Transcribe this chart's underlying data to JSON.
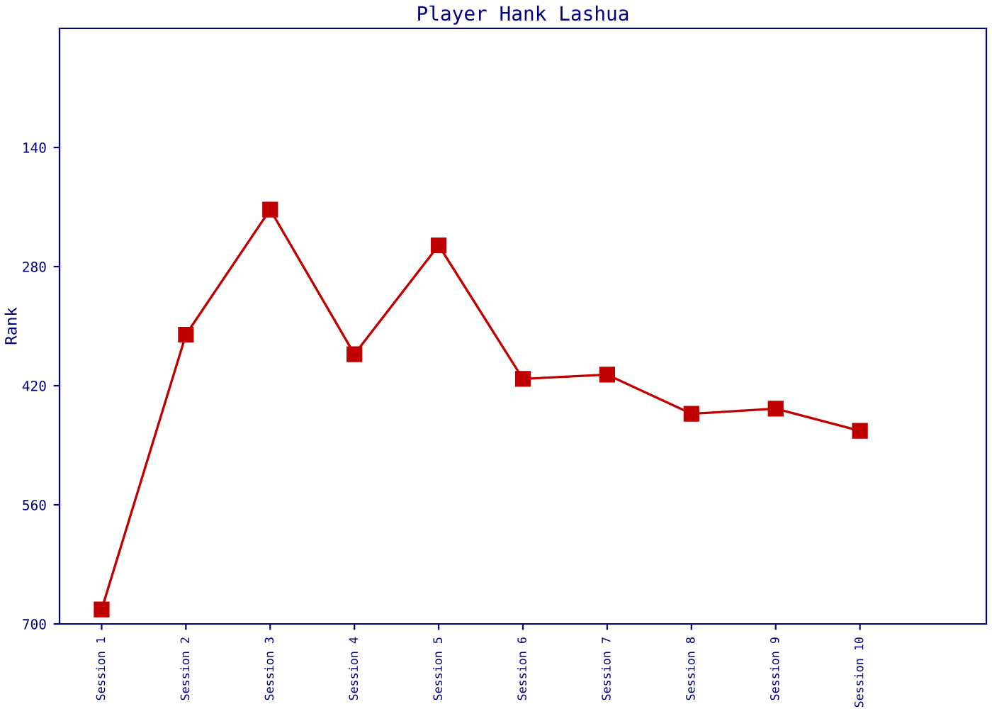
{
  "chart_data": {
    "type": "line",
    "title": "Player Hank Lashua",
    "ylabel": "Rank",
    "categories": [
      "Session 1",
      "Session 2",
      "Session 3",
      "Session 4",
      "Session 5",
      "Session 6",
      "Session 7",
      "Session 8",
      "Session 9",
      "Session 10"
    ],
    "series": [
      {
        "color": "#c00000",
        "values": [
          683,
          360,
          213,
          383,
          255,
          412,
          407,
          453,
          447,
          473
        ]
      }
    ],
    "ylim": [
      700,
      0
    ],
    "yticks": [
      140,
      280,
      420,
      560,
      700
    ],
    "marker": "square",
    "line_style": "solid",
    "grid": false,
    "legend": false
  }
}
